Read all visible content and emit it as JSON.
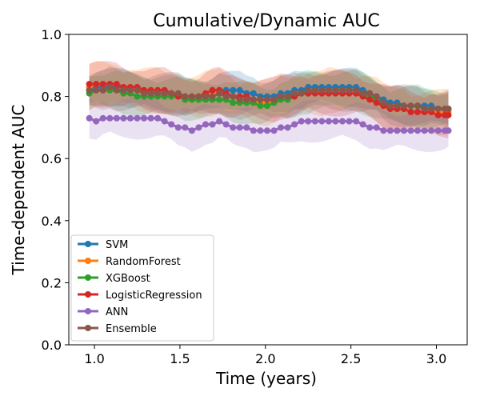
{
  "chart_data": {
    "type": "line",
    "title": "Cumulative/Dynamic AUC",
    "xlabel": "Time (years)",
    "ylabel": "Time-dependent AUC",
    "xlim": [
      0.85,
      3.18
    ],
    "ylim": [
      0.0,
      1.0
    ],
    "xticks": [
      "1.0",
      "1.5",
      "2.0",
      "2.5",
      "3.0"
    ],
    "yticks": [
      "0.0",
      "0.2",
      "0.4",
      "0.6",
      "0.8",
      "1.0"
    ],
    "grid": false,
    "legend_position": "lower-left",
    "x": [
      0.97,
      1.01,
      1.05,
      1.09,
      1.13,
      1.17,
      1.21,
      1.25,
      1.29,
      1.33,
      1.37,
      1.41,
      1.45,
      1.49,
      1.53,
      1.57,
      1.61,
      1.65,
      1.69,
      1.73,
      1.77,
      1.81,
      1.85,
      1.89,
      1.93,
      1.97,
      2.01,
      2.05,
      2.09,
      2.13,
      2.17,
      2.21,
      2.25,
      2.29,
      2.33,
      2.37,
      2.41,
      2.45,
      2.49,
      2.53,
      2.57,
      2.61,
      2.65,
      2.69,
      2.73,
      2.77,
      2.81,
      2.85,
      2.89,
      2.93,
      2.97,
      3.01,
      3.05,
      3.07
    ],
    "series": [
      {
        "name": "SVM",
        "color": "#1f77b4",
        "values": [
          0.82,
          0.83,
          0.83,
          0.83,
          0.83,
          0.83,
          0.82,
          0.82,
          0.82,
          0.81,
          0.81,
          0.81,
          0.81,
          0.81,
          0.8,
          0.8,
          0.8,
          0.8,
          0.81,
          0.82,
          0.82,
          0.82,
          0.82,
          0.81,
          0.81,
          0.8,
          0.8,
          0.8,
          0.81,
          0.81,
          0.82,
          0.82,
          0.83,
          0.83,
          0.83,
          0.83,
          0.83,
          0.83,
          0.83,
          0.83,
          0.82,
          0.81,
          0.8,
          0.79,
          0.78,
          0.78,
          0.77,
          0.77,
          0.77,
          0.77,
          0.77,
          0.76,
          0.76,
          0.76
        ],
        "band": 0.04
      },
      {
        "name": "RandomForest",
        "color": "#ff7f0e",
        "values": [
          0.83,
          0.84,
          0.84,
          0.84,
          0.84,
          0.83,
          0.83,
          0.82,
          0.82,
          0.82,
          0.82,
          0.81,
          0.81,
          0.81,
          0.8,
          0.8,
          0.8,
          0.81,
          0.81,
          0.82,
          0.81,
          0.8,
          0.79,
          0.79,
          0.78,
          0.78,
          0.78,
          0.79,
          0.8,
          0.8,
          0.81,
          0.81,
          0.81,
          0.81,
          0.81,
          0.82,
          0.82,
          0.82,
          0.82,
          0.81,
          0.81,
          0.8,
          0.79,
          0.77,
          0.76,
          0.76,
          0.76,
          0.75,
          0.75,
          0.75,
          0.75,
          0.75,
          0.75,
          0.75
        ],
        "band": 0.05
      },
      {
        "name": "XGBoost",
        "color": "#2ca02c",
        "values": [
          0.81,
          0.82,
          0.82,
          0.82,
          0.82,
          0.81,
          0.81,
          0.8,
          0.8,
          0.8,
          0.8,
          0.8,
          0.8,
          0.8,
          0.79,
          0.79,
          0.79,
          0.79,
          0.79,
          0.79,
          0.79,
          0.78,
          0.78,
          0.78,
          0.78,
          0.77,
          0.77,
          0.78,
          0.79,
          0.79,
          0.8,
          0.81,
          0.81,
          0.82,
          0.82,
          0.82,
          0.82,
          0.82,
          0.82,
          0.82,
          0.81,
          0.8,
          0.79,
          0.78,
          0.77,
          0.77,
          0.77,
          0.77,
          0.77,
          0.76,
          0.76,
          0.76,
          0.76,
          0.76
        ],
        "band": 0.045
      },
      {
        "name": "LogisticRegression",
        "color": "#d62728",
        "values": [
          0.84,
          0.84,
          0.84,
          0.84,
          0.84,
          0.83,
          0.83,
          0.83,
          0.82,
          0.82,
          0.82,
          0.82,
          0.81,
          0.8,
          0.8,
          0.8,
          0.8,
          0.81,
          0.82,
          0.82,
          0.81,
          0.8,
          0.8,
          0.8,
          0.79,
          0.79,
          0.79,
          0.79,
          0.8,
          0.8,
          0.8,
          0.81,
          0.81,
          0.81,
          0.81,
          0.81,
          0.81,
          0.81,
          0.81,
          0.81,
          0.8,
          0.79,
          0.78,
          0.77,
          0.76,
          0.76,
          0.76,
          0.75,
          0.75,
          0.75,
          0.75,
          0.74,
          0.74,
          0.74
        ],
        "band": 0.05
      },
      {
        "name": "ANN",
        "color": "#9467bd",
        "values": [
          0.73,
          0.72,
          0.73,
          0.73,
          0.73,
          0.73,
          0.73,
          0.73,
          0.73,
          0.73,
          0.73,
          0.72,
          0.71,
          0.7,
          0.7,
          0.69,
          0.7,
          0.71,
          0.71,
          0.72,
          0.71,
          0.7,
          0.7,
          0.7,
          0.69,
          0.69,
          0.69,
          0.69,
          0.7,
          0.7,
          0.71,
          0.72,
          0.72,
          0.72,
          0.72,
          0.72,
          0.72,
          0.72,
          0.72,
          0.72,
          0.71,
          0.7,
          0.7,
          0.69,
          0.69,
          0.69,
          0.69,
          0.69,
          0.69,
          0.69,
          0.69,
          0.69,
          0.69,
          0.69
        ],
        "band": 0.045
      },
      {
        "name": "Ensemble",
        "color": "#8c564b",
        "values": [
          0.82,
          0.82,
          0.82,
          0.83,
          0.82,
          0.82,
          0.82,
          0.82,
          0.81,
          0.81,
          0.81,
          0.81,
          0.81,
          0.81,
          0.8,
          0.8,
          0.8,
          0.8,
          0.8,
          0.81,
          0.8,
          0.8,
          0.79,
          0.79,
          0.79,
          0.79,
          0.79,
          0.79,
          0.8,
          0.8,
          0.81,
          0.81,
          0.82,
          0.82,
          0.82,
          0.82,
          0.82,
          0.82,
          0.82,
          0.82,
          0.81,
          0.81,
          0.8,
          0.78,
          0.77,
          0.77,
          0.77,
          0.77,
          0.77,
          0.76,
          0.76,
          0.76,
          0.76,
          0.76
        ],
        "band": 0.045
      }
    ]
  }
}
